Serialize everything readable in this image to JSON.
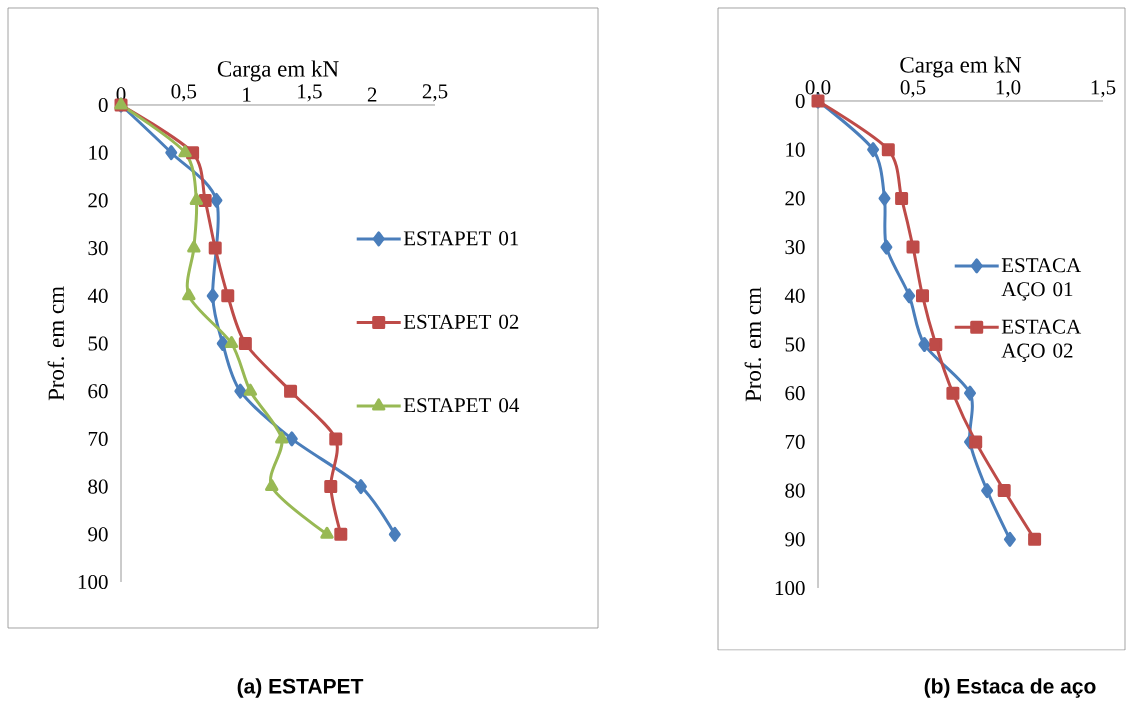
{
  "chart_data": [
    {
      "type": "line",
      "title": "(a)  ESTAPET",
      "xlabel": "Carga em kN",
      "ylabel": "Prof. em cm",
      "xlim": [
        0,
        2.5
      ],
      "xticks": [
        0,
        {
          "value": 0.5,
          "label": "0,5"
        },
        1,
        {
          "value": 1.5,
          "label": "1,5"
        },
        2,
        {
          "value": 2.5,
          "label": "2,5"
        }
      ],
      "ylim": [
        100,
        0
      ],
      "yticks": [
        0,
        10,
        20,
        30,
        40,
        50,
        60,
        70,
        80,
        90,
        100
      ],
      "grid": false,
      "legend": "right",
      "series": [
        {
          "name": "ESTAPET 01",
          "color": "#4a7ebb",
          "marker": "diamond",
          "x": [
            0,
            0.4,
            0.76,
            0.75,
            0.73,
            0.81,
            0.95,
            1.36,
            1.91,
            2.18
          ],
          "values": [
            0,
            10,
            20,
            null,
            40,
            50,
            60,
            70,
            80,
            90
          ]
        },
        {
          "name": "ESTAPET 02",
          "color": "#be4b48",
          "marker": "square",
          "x": [
            0,
            0.57,
            0.67,
            0.75,
            0.85,
            0.99,
            1.35,
            1.71,
            1.67,
            1.75
          ],
          "values": [
            0,
            10,
            20,
            30,
            40,
            50,
            60,
            70,
            80,
            90
          ]
        },
        {
          "name": "ESTAPET 04",
          "color": "#98b954",
          "marker": "triangle",
          "x": [
            0,
            0.51,
            0.6,
            0.58,
            0.54,
            0.88,
            1.03,
            1.28,
            1.2,
            1.64
          ],
          "values": [
            0,
            10,
            20,
            30,
            40,
            50,
            60,
            70,
            80,
            90
          ]
        }
      ]
    },
    {
      "type": "line",
      "title": "(b)  Estaca de aço",
      "xlabel": "Carga em kN",
      "ylabel": "Prof. em cm",
      "xlim": [
        0,
        1.5
      ],
      "xticks": [
        {
          "value": 0,
          "label": "0,0"
        },
        {
          "value": 0.5,
          "label": "0,5"
        },
        {
          "value": 1,
          "label": "1,0"
        },
        {
          "value": 1.5,
          "label": "1,5"
        }
      ],
      "ylim": [
        100,
        0
      ],
      "yticks": [
        0,
        10,
        20,
        30,
        40,
        50,
        60,
        70,
        80,
        90,
        100
      ],
      "grid": false,
      "legend": "right",
      "series": [
        {
          "name": "ESTACA AÇO 01",
          "color": "#4a7ebb",
          "marker": "diamond",
          "x": [
            0,
            0.29,
            0.35,
            0.36,
            0.48,
            0.56,
            0.8,
            0.8,
            0.89,
            1.01
          ],
          "values": [
            0,
            10,
            20,
            30,
            40,
            50,
            60,
            70,
            80,
            90
          ]
        },
        {
          "name": "ESTACA AÇO 02",
          "color": "#be4b48",
          "marker": "square",
          "x": [
            0,
            0.37,
            0.44,
            0.5,
            0.55,
            0.62,
            0.71,
            0.83,
            0.98,
            1.14
          ],
          "values": [
            0,
            10,
            20,
            30,
            40,
            50,
            60,
            70,
            80,
            90
          ]
        }
      ]
    }
  ]
}
